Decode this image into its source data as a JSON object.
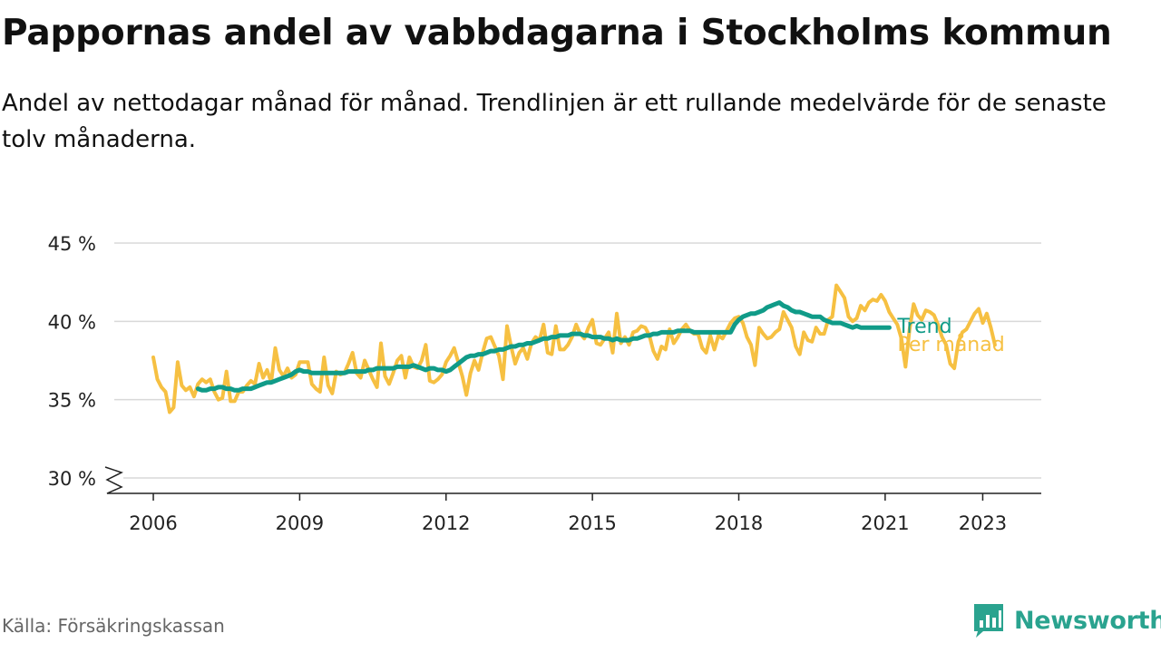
{
  "title": "Pappornas andel av vabbdagarna i Stockholms kommun",
  "subtitle": "Andel av nettodagar månad för månad. Trendlinjen är ett rullande medelvärde för de senaste tolv månaderna.",
  "source": "Källa: Försäkringskassan",
  "brand": "Newsworthy",
  "colors": {
    "monthly": "#f6c042",
    "trend": "#109b88",
    "grid": "#d9d9d9",
    "axis": "#222222",
    "brand": "#2aa38f"
  },
  "chart_data": {
    "type": "line",
    "ylabel": "",
    "xlabel": "",
    "ylim": [
      30,
      45
    ],
    "xlim": [
      2005.2,
      2024.2
    ],
    "y_ticks": [
      {
        "value": 30,
        "label": "30 %"
      },
      {
        "value": 35,
        "label": "35 %"
      },
      {
        "value": 40,
        "label": "40 %"
      },
      {
        "value": 45,
        "label": "45 %"
      }
    ],
    "x_ticks": [
      {
        "value": 2006,
        "label": "2006"
      },
      {
        "value": 2009,
        "label": "2009"
      },
      {
        "value": 2012,
        "label": "2012"
      },
      {
        "value": 2015,
        "label": "2015"
      },
      {
        "value": 2018,
        "label": "2018"
      },
      {
        "value": 2021,
        "label": "2021"
      },
      {
        "value": 2023,
        "label": "2023"
      }
    ],
    "axis_break": true,
    "grid": true,
    "series": [
      {
        "name": "Per månad",
        "start": "2006-01",
        "values": [
          37.7,
          36.3,
          35.8,
          35.5,
          34.2,
          34.5,
          37.4,
          35.9,
          35.6,
          35.8,
          35.2,
          36.0,
          36.3,
          36.1,
          36.3,
          35.5,
          35.0,
          35.1,
          36.8,
          34.9,
          34.9,
          35.5,
          35.5,
          35.9,
          36.2,
          36.0,
          37.3,
          36.4,
          36.9,
          36.1,
          38.3,
          36.9,
          36.5,
          37.0,
          36.4,
          36.6,
          37.4,
          37.4,
          37.4,
          36.0,
          35.7,
          35.5,
          37.7,
          35.9,
          35.4,
          36.8,
          36.6,
          36.7,
          37.3,
          38.0,
          36.7,
          36.4,
          37.5,
          36.9,
          36.3,
          35.8,
          38.6,
          36.5,
          36.0,
          36.7,
          37.5,
          37.8,
          36.4,
          37.7,
          37.1,
          37.0,
          37.5,
          38.5,
          36.2,
          36.1,
          36.3,
          36.6,
          37.4,
          37.8,
          38.3,
          37.4,
          36.5,
          35.3,
          36.7,
          37.5,
          36.9,
          38.0,
          38.9,
          39.0,
          38.4,
          37.8,
          36.3,
          39.7,
          38.4,
          37.3,
          38.0,
          38.3,
          37.6,
          38.6,
          39.0,
          38.8,
          39.8,
          38.0,
          37.9,
          39.7,
          38.2,
          38.2,
          38.5,
          39.0,
          39.8,
          39.2,
          38.9,
          39.6,
          40.1,
          38.6,
          38.5,
          38.9,
          39.3,
          38.0,
          40.5,
          38.6,
          39.0,
          38.5,
          39.3,
          39.4,
          39.7,
          39.6,
          39.1,
          38.1,
          37.6,
          38.4,
          38.2,
          39.5,
          38.6,
          39.0,
          39.5,
          39.8,
          39.4,
          39.2,
          39.2,
          38.3,
          38.0,
          39.1,
          38.2,
          39.1,
          38.9,
          39.4,
          39.9,
          40.2,
          40.3,
          39.9,
          39.0,
          38.5,
          37.2,
          39.6,
          39.2,
          38.9,
          39.0,
          39.3,
          39.5,
          40.6,
          40.1,
          39.6,
          38.4,
          37.9,
          39.3,
          38.8,
          38.7,
          39.6,
          39.2,
          39.2,
          40.1,
          40.3,
          42.3,
          41.9,
          41.5,
          40.3,
          40.0,
          40.2,
          41.0,
          40.7,
          41.2,
          41.4,
          41.3,
          41.7,
          41.3,
          40.6,
          40.2,
          39.8,
          38.9,
          37.1,
          39.5,
          41.1,
          40.4,
          40.1,
          40.7,
          40.6,
          40.4,
          39.8,
          39.0,
          38.5,
          37.3,
          37.0,
          38.7,
          39.3,
          39.5,
          40.0,
          40.5,
          40.8,
          39.9,
          40.5,
          39.6,
          38.5
        ]
      },
      {
        "name": "Trend",
        "start": "2006-12",
        "values": [
          35.7,
          35.6,
          35.6,
          35.7,
          35.7,
          35.8,
          35.8,
          35.7,
          35.7,
          35.6,
          35.6,
          35.7,
          35.7,
          35.7,
          35.8,
          35.9,
          36.0,
          36.1,
          36.1,
          36.2,
          36.3,
          36.4,
          36.5,
          36.6,
          36.8,
          36.9,
          36.8,
          36.8,
          36.7,
          36.7,
          36.7,
          36.7,
          36.7,
          36.7,
          36.7,
          36.7,
          36.7,
          36.8,
          36.8,
          36.8,
          36.8,
          36.8,
          36.9,
          36.9,
          37.0,
          37.0,
          37.0,
          37.0,
          37.0,
          37.1,
          37.1,
          37.1,
          37.1,
          37.2,
          37.1,
          37.0,
          36.9,
          37.0,
          37.0,
          36.9,
          36.9,
          36.8,
          36.9,
          37.1,
          37.3,
          37.5,
          37.7,
          37.8,
          37.8,
          37.9,
          37.9,
          38.0,
          38.1,
          38.1,
          38.2,
          38.2,
          38.3,
          38.4,
          38.4,
          38.5,
          38.5,
          38.6,
          38.6,
          38.7,
          38.8,
          38.9,
          38.9,
          39.0,
          39.0,
          39.1,
          39.1,
          39.1,
          39.2,
          39.2,
          39.2,
          39.1,
          39.1,
          39.0,
          39.0,
          39.0,
          38.9,
          38.9,
          38.8,
          38.9,
          38.8,
          38.8,
          38.8,
          38.9,
          38.9,
          39.0,
          39.1,
          39.1,
          39.2,
          39.2,
          39.3,
          39.3,
          39.3,
          39.3,
          39.4,
          39.4,
          39.4,
          39.4,
          39.3,
          39.3,
          39.3,
          39.3,
          39.3,
          39.3,
          39.3,
          39.3,
          39.3,
          39.3,
          39.8,
          40.1,
          40.3,
          40.4,
          40.5,
          40.5,
          40.6,
          40.7,
          40.9,
          41.0,
          41.1,
          41.2,
          41.0,
          40.9,
          40.7,
          40.6,
          40.6,
          40.5,
          40.4,
          40.3,
          40.3,
          40.3,
          40.1,
          40.0,
          39.9,
          39.9,
          39.9,
          39.8,
          39.7,
          39.6,
          39.7,
          39.6,
          39.6,
          39.6,
          39.6,
          39.6,
          39.6,
          39.6,
          39.6
        ]
      }
    ],
    "legend": [
      {
        "series": "Trend",
        "label": "Trend"
      },
      {
        "series": "Per månad",
        "label": "Per månad"
      }
    ],
    "legend_placement": "right-end-of-lines"
  }
}
